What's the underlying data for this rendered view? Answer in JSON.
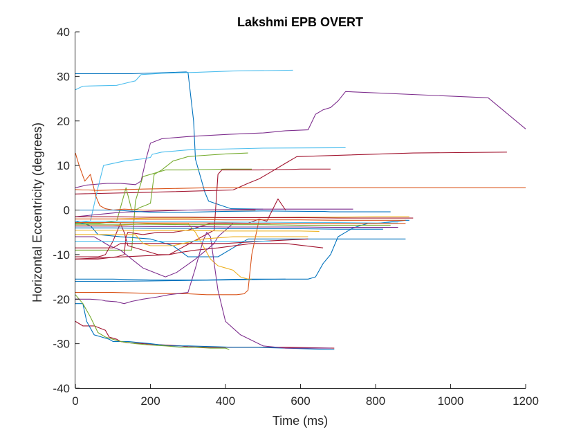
{
  "chart_data": {
    "type": "line",
    "title": "Lakshmi EPB OVERT",
    "xlabel": "Time (ms)",
    "ylabel": "Horizontal Eccentricity (degrees)",
    "xlim": [
      0,
      1200
    ],
    "ylim": [
      -40,
      40
    ],
    "xticks": [
      0,
      200,
      400,
      600,
      800,
      1000,
      1200
    ],
    "yticks": [
      -40,
      -30,
      -20,
      -10,
      0,
      10,
      20,
      30,
      40
    ],
    "grid": false,
    "box": false,
    "series": [
      {
        "color": "#0072BD",
        "x": [
          0,
          150,
          295,
          300,
          315,
          320,
          345,
          355,
          390,
          415,
          500
        ],
        "y": [
          30.6,
          30.6,
          31.0,
          30.9,
          20,
          11.4,
          4.0,
          2.0,
          1.0,
          0.3,
          0.2
        ]
      },
      {
        "color": "#4DBEEE",
        "x": [
          0,
          20,
          60,
          110,
          140,
          160,
          175,
          230,
          320,
          420,
          580
        ],
        "y": [
          27.0,
          27.8,
          27.9,
          28.0,
          28.6,
          29.0,
          30.4,
          30.7,
          30.9,
          31.2,
          31.4
        ]
      },
      {
        "color": "#7E2F8E",
        "x": [
          0,
          30,
          85,
          120,
          160,
          175,
          190,
          200,
          230,
          300,
          410,
          500,
          560,
          620,
          640,
          660,
          680,
          700,
          720,
          1100,
          1200
        ],
        "y": [
          5.0,
          5.6,
          6.0,
          6.0,
          5.7,
          6.5,
          12.0,
          15.0,
          16.0,
          16.5,
          17.0,
          17.3,
          17.8,
          18.0,
          21.5,
          22.5,
          23.0,
          24.5,
          26.6,
          25.2,
          18.2
        ]
      },
      {
        "color": "#A2142F",
        "x": [
          0,
          200,
          420,
          460,
          490,
          520,
          560,
          590,
          900,
          1150
        ],
        "y": [
          3.6,
          4.0,
          4.5,
          6.0,
          7.0,
          8.5,
          10.5,
          12.0,
          12.8,
          13.0
        ]
      },
      {
        "color": "#4DBEEE",
        "x": [
          0,
          40,
          60,
          75,
          130,
          180,
          200,
          205,
          230,
          300,
          500,
          720
        ],
        "y": [
          -3.0,
          -2.5,
          5.0,
          10.0,
          11.0,
          11.5,
          11.8,
          12.5,
          13.0,
          13.5,
          13.9,
          14.0
        ]
      },
      {
        "color": "#77AC30",
        "x": [
          0,
          60,
          110,
          135,
          150,
          165,
          170,
          185,
          200,
          210,
          230,
          260,
          300,
          330,
          400,
          460
        ],
        "y": [
          -3.0,
          -3.0,
          -2.5,
          5.0,
          0.0,
          0.2,
          0.5,
          1.0,
          1.5,
          8.0,
          9.0,
          11.0,
          12.0,
          12.2,
          12.6,
          12.8
        ]
      },
      {
        "color": "#D95319",
        "x": [
          0,
          20,
          35,
          60,
          130,
          180,
          240,
          350,
          600,
          800,
          1200
        ],
        "y": [
          4.6,
          4.5,
          4.5,
          4.4,
          4.6,
          4.7,
          4.8,
          5.0,
          5.0,
          5.0,
          5.0
        ]
      },
      {
        "color": "#D95319",
        "x": [
          0,
          10,
          25,
          40,
          55,
          65,
          80,
          100,
          130,
          180,
          330,
          480
        ],
        "y": [
          12.8,
          10.0,
          6.5,
          8.0,
          3.0,
          1.0,
          0.3,
          0.0,
          0.2,
          0.0,
          0.0,
          0.0
        ]
      },
      {
        "color": "#77AC30",
        "x": [
          0,
          90,
          150,
          160,
          180,
          240,
          300,
          360,
          400,
          470
        ],
        "y": [
          -9.0,
          -9.0,
          -9.0,
          2.0,
          7.5,
          9.0,
          9.0,
          9.1,
          9.2,
          9.2
        ]
      },
      {
        "color": "#A2142F",
        "x": [
          0,
          130,
          250,
          370,
          380,
          390,
          490,
          570,
          600,
          620,
          650,
          680
        ],
        "y": [
          -11.0,
          -10.5,
          -10.0,
          -4.5,
          8.0,
          9.0,
          9.0,
          9.1,
          9.2,
          9.2,
          9.2,
          9.2
        ]
      },
      {
        "color": "#7E2F8E",
        "x": [
          0,
          60,
          120,
          300,
          420,
          500,
          530,
          560,
          740
        ],
        "y": [
          -1.5,
          -1.0,
          -0.5,
          0.0,
          0.1,
          0.2,
          0.2,
          0.2,
          0.2
        ]
      },
      {
        "color": "#0072BD",
        "x": [
          0,
          100,
          200,
          300,
          400,
          500,
          620,
          660,
          680,
          700,
          720,
          760,
          840
        ],
        "y": [
          0.0,
          0.0,
          -0.5,
          -0.5,
          -0.3,
          -0.2,
          -0.3,
          -0.3,
          -0.4,
          -0.4,
          -0.4,
          -0.4,
          -0.4
        ]
      },
      {
        "color": "#EDB120",
        "x": [
          0,
          100,
          200,
          300,
          400,
          500,
          600,
          700,
          800,
          890
        ],
        "y": [
          -2.0,
          -2.0,
          -1.8,
          -1.8,
          -1.7,
          -1.7,
          -1.6,
          -1.6,
          -1.5,
          -1.5
        ]
      },
      {
        "color": "#0072BD",
        "x": [
          0,
          40,
          60,
          120,
          200,
          260,
          300,
          340,
          380,
          420,
          460,
          520,
          540,
          560,
          600,
          640,
          660,
          680,
          700,
          720,
          880
        ],
        "y": [
          -2.5,
          -3.5,
          -5.5,
          -6.0,
          -6.5,
          -8.0,
          -10.5,
          -10.5,
          -10.5,
          -8.5,
          -6.5,
          -6.5,
          -6.5,
          -6.5,
          -6.5,
          -6.5,
          -6.5,
          -6.5,
          -6.5,
          -6.5,
          -6.5
        ]
      },
      {
        "color": "#0072BD",
        "x": [
          0,
          100,
          200,
          300,
          350,
          400,
          460,
          500,
          560,
          620,
          640,
          660,
          680,
          690,
          700,
          720,
          740,
          760,
          780,
          800,
          860,
          880,
          890
        ],
        "y": [
          -15.5,
          -15.5,
          -15.7,
          -15.7,
          -15.7,
          -15.6,
          -15.5,
          -15.5,
          -15.5,
          -15.5,
          -15.0,
          -12.0,
          -10.0,
          -8.0,
          -6.0,
          -5.0,
          -4.0,
          -3.5,
          -3.0,
          -3.0,
          -2.5,
          -2.3,
          -2.3
        ]
      },
      {
        "color": "#A2142F",
        "x": [
          0,
          60,
          70,
          80,
          100,
          110,
          120,
          130,
          140,
          180,
          220,
          250,
          280,
          320,
          380,
          470,
          560,
          660
        ],
        "y": [
          -10.5,
          -10.5,
          -10.3,
          -10.0,
          -7.0,
          -5.0,
          -3.0,
          -5.0,
          -8.0,
          -9.0,
          -10.0,
          -10.0,
          -9.5,
          -9.0,
          -8.5,
          -7.5,
          -7.5,
          -8.5
        ]
      },
      {
        "color": "#A2142F",
        "x": [
          0,
          60,
          110,
          130,
          135,
          140,
          180,
          220,
          260,
          300,
          360,
          400,
          460,
          490,
          510,
          540,
          560
        ],
        "y": [
          -11.0,
          -11.0,
          -10.5,
          -10.0,
          -6.0,
          -5.0,
          -5.5,
          -5.0,
          -5.0,
          -4.5,
          -3.0,
          -3.0,
          -3.0,
          -2.0,
          -2.5,
          2.5,
          0.0
        ]
      },
      {
        "color": "#7E2F8E",
        "x": [
          0,
          50,
          90,
          120,
          180,
          240,
          270,
          320,
          370,
          380,
          420,
          520
        ],
        "y": [
          -6.0,
          -6.0,
          -8.0,
          -9.0,
          -13.0,
          -15.0,
          -14.0,
          -11.0,
          -7.5,
          -6.0,
          -3.0,
          -3.0
        ]
      },
      {
        "color": "#D95319",
        "x": [
          0,
          100,
          200,
          300,
          350,
          400,
          430,
          450,
          460,
          470,
          480,
          490
        ],
        "y": [
          -18.5,
          -18.5,
          -18.7,
          -18.8,
          -19.0,
          -19.0,
          -19.0,
          -18.8,
          -18.0,
          -10.0,
          -6.0,
          -2.0
        ]
      },
      {
        "color": "#EDB120",
        "x": [
          0,
          100,
          200,
          250,
          300,
          320,
          340,
          360,
          380,
          400,
          420,
          440,
          460,
          470
        ],
        "y": [
          -3.5,
          -3.5,
          -3.0,
          -3.0,
          -3.0,
          -5.0,
          -8.0,
          -11.0,
          -12.5,
          -13.0,
          -13.5,
          -15.0,
          -15.5,
          -15.5
        ]
      },
      {
        "color": "#A2142F",
        "x": [
          0,
          20,
          50,
          80,
          90,
          110,
          120,
          140,
          180,
          240,
          280,
          300,
          360,
          420,
          560,
          690
        ],
        "y": [
          -25.0,
          -26.0,
          -26.0,
          -27.0,
          -28.5,
          -29.0,
          -29.5,
          -29.8,
          -30.0,
          -30.3,
          -30.5,
          -30.7,
          -30.8,
          -30.8,
          -30.8,
          -31.0
        ]
      },
      {
        "color": "#0072BD",
        "x": [
          0,
          20,
          30,
          50,
          70,
          90,
          100,
          140,
          200,
          250,
          300,
          380,
          420,
          480,
          560,
          640,
          690
        ],
        "y": [
          -21.0,
          -21.0,
          -25.0,
          -28.0,
          -28.5,
          -29.0,
          -29.5,
          -29.5,
          -30.0,
          -30.5,
          -30.5,
          -30.7,
          -30.8,
          -30.8,
          -31.0,
          -31.2,
          -31.3
        ]
      },
      {
        "color": "#77AC30",
        "x": [
          0,
          20,
          40,
          60,
          80,
          100,
          120,
          160,
          200,
          240,
          280,
          320,
          360,
          400,
          410
        ],
        "y": [
          -19.0,
          -21.0,
          -24.0,
          -27.5,
          -28.5,
          -29.0,
          -29.5,
          -30.0,
          -30.3,
          -30.5,
          -30.8,
          -30.8,
          -31.0,
          -31.0,
          -31.3
        ]
      },
      {
        "color": "#7E2F8E",
        "x": [
          0,
          40,
          70,
          80,
          110,
          130,
          150,
          180,
          220,
          250,
          300,
          320,
          340,
          350,
          360,
          370,
          380,
          400,
          440,
          500,
          560,
          680
        ],
        "y": [
          -20.0,
          -20.0,
          -20.2,
          -20.4,
          -20.6,
          -21.0,
          -20.5,
          -20.0,
          -19.5,
          -19.0,
          -18.5,
          -13.0,
          -7.0,
          -5.0,
          -6.0,
          -12.0,
          -18.0,
          -25.0,
          -28.0,
          -30.5,
          -31.0,
          -31.0
        ]
      },
      {
        "color": "#A2142F",
        "x": [
          0,
          60,
          100,
          120,
          130,
          150,
          200,
          260,
          300,
          400,
          500,
          620
        ],
        "y": [
          -8.5,
          -8.5,
          -8.5,
          -7.5,
          -7.5,
          -7.5,
          -7.5,
          -7.5,
          -7.5,
          -7.5,
          -7.0,
          -6.5
        ]
      },
      {
        "color": "#EDB120",
        "x": [
          0,
          100,
          160,
          180,
          200,
          260,
          340,
          420,
          520,
          620
        ],
        "y": [
          -5.5,
          -5.5,
          -5.5,
          -7.5,
          -8.0,
          -8.0,
          -6.5,
          -6.0,
          -6.0,
          -6.0
        ]
      },
      {
        "color": "#4DBEEE",
        "x": [
          0,
          100,
          200,
          300,
          400,
          500,
          600,
          700,
          800,
          860
        ],
        "y": [
          -2.5,
          -2.5,
          -2.6,
          -2.6,
          -2.7,
          -2.7,
          -2.8,
          -2.8,
          -2.9,
          -2.9
        ]
      },
      {
        "color": "#D95319",
        "x": [
          0,
          100,
          200,
          300,
          400,
          500,
          600,
          700,
          800,
          880
        ],
        "y": [
          -2.8,
          -2.8,
          -2.9,
          -2.9,
          -2.9,
          -3.0,
          -3.0,
          -3.0,
          -3.0,
          -3.0
        ]
      },
      {
        "color": "#77AC30",
        "x": [
          0,
          100,
          200,
          300,
          400,
          500,
          600,
          700,
          800,
          840
        ],
        "y": [
          -3.2,
          -3.2,
          -3.2,
          -3.3,
          -3.3,
          -3.3,
          -3.4,
          -3.4,
          -3.4,
          -3.4
        ]
      },
      {
        "color": "#7E2F8E",
        "x": [
          0,
          100,
          200,
          300,
          400,
          500,
          600,
          700,
          800,
          860
        ],
        "y": [
          -3.6,
          -3.6,
          -3.7,
          -3.7,
          -3.8,
          -3.8,
          -3.8,
          -3.9,
          -3.9,
          -3.9
        ]
      },
      {
        "color": "#0072BD",
        "x": [
          0,
          100,
          200,
          300,
          400,
          500,
          600,
          700,
          820
        ],
        "y": [
          -4.0,
          -4.0,
          -4.1,
          -4.1,
          -4.2,
          -4.2,
          -4.2,
          -4.3,
          -4.3
        ]
      },
      {
        "color": "#EDB120",
        "x": [
          0,
          100,
          200,
          300,
          400,
          500,
          600,
          650
        ],
        "y": [
          -4.5,
          -4.5,
          -4.6,
          -4.6,
          -4.7,
          -4.7,
          -4.7,
          -4.8
        ]
      },
      {
        "color": "#4DBEEE",
        "x": [
          0,
          100,
          200,
          300,
          400,
          500,
          520
        ],
        "y": [
          -7.0,
          -7.0,
          -7.0,
          -7.0,
          -7.0,
          -7.0,
          -7.0
        ]
      },
      {
        "color": "#A2142F",
        "x": [
          0,
          100,
          200,
          300,
          400,
          500,
          600,
          700,
          800,
          900
        ],
        "y": [
          -1.5,
          -1.5,
          -1.6,
          -1.6,
          -1.7,
          -1.7,
          -1.7,
          -1.8,
          -1.8,
          -1.8
        ]
      },
      {
        "color": "#D95319",
        "x": [
          0,
          100,
          200,
          300,
          400,
          500,
          600,
          700,
          800,
          880
        ],
        "y": [
          -2.0,
          -2.0,
          -2.1,
          -2.1,
          -2.2,
          -2.2,
          -2.2,
          -2.3,
          -2.3,
          -2.3
        ]
      },
      {
        "color": "#0072BD",
        "x": [
          0,
          100,
          200,
          300,
          400,
          480,
          560
        ],
        "y": [
          -16.0,
          -16.0,
          -15.9,
          -15.8,
          -15.7,
          -15.6,
          -15.5
        ]
      }
    ]
  }
}
